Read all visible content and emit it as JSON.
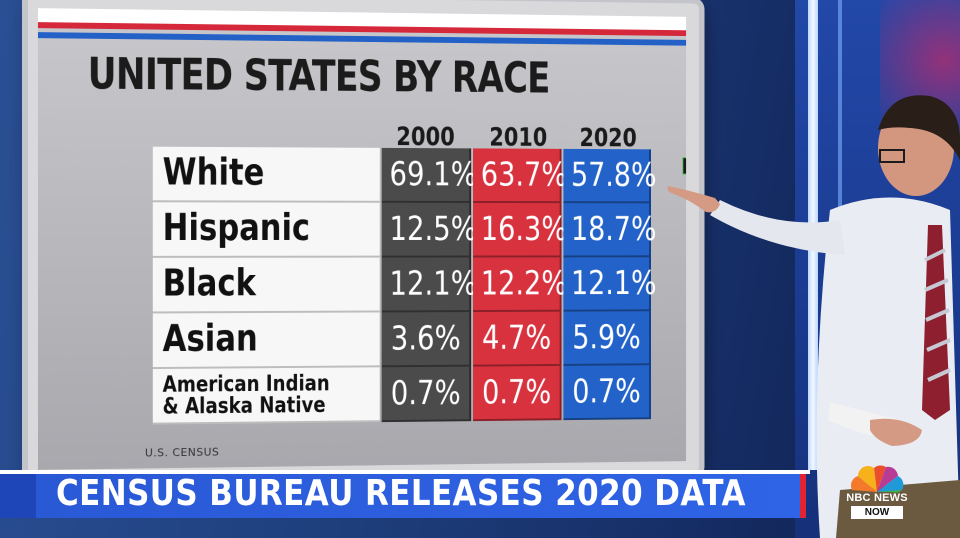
{
  "board": {
    "title": "UNITED STATES BY RACE",
    "source": "U.S. CENSUS",
    "years": [
      "2000",
      "2010",
      "2020"
    ],
    "rows": [
      {
        "label": "White",
        "v2000": "69.1%",
        "v2010": "63.7%",
        "v2020": "57.8%"
      },
      {
        "label": "Hispanic",
        "v2000": "12.5%",
        "v2010": "16.3%",
        "v2020": "18.7%"
      },
      {
        "label": "Black",
        "v2000": "12.1%",
        "v2010": "12.2%",
        "v2020": "12.1%"
      },
      {
        "label": "Asian",
        "v2000": "3.6%",
        "v2010": "4.7%",
        "v2020": "5.9%"
      },
      {
        "label_line1": "American Indian",
        "label_line2": "& Alaska Native",
        "v2000": "0.7%",
        "v2010": "0.7%",
        "v2020": "0.7%"
      }
    ],
    "colors": {
      "y2000": "#4b4b4b",
      "y2010": "#d8323f",
      "y2020": "#2363c9"
    }
  },
  "lower_third": {
    "headline": "CENSUS BUREAU RELEASES 2020 DATA"
  },
  "network_logo": {
    "line1": "NBC NEWS",
    "line2": "NOW",
    "icon": "peacock-icon"
  }
}
